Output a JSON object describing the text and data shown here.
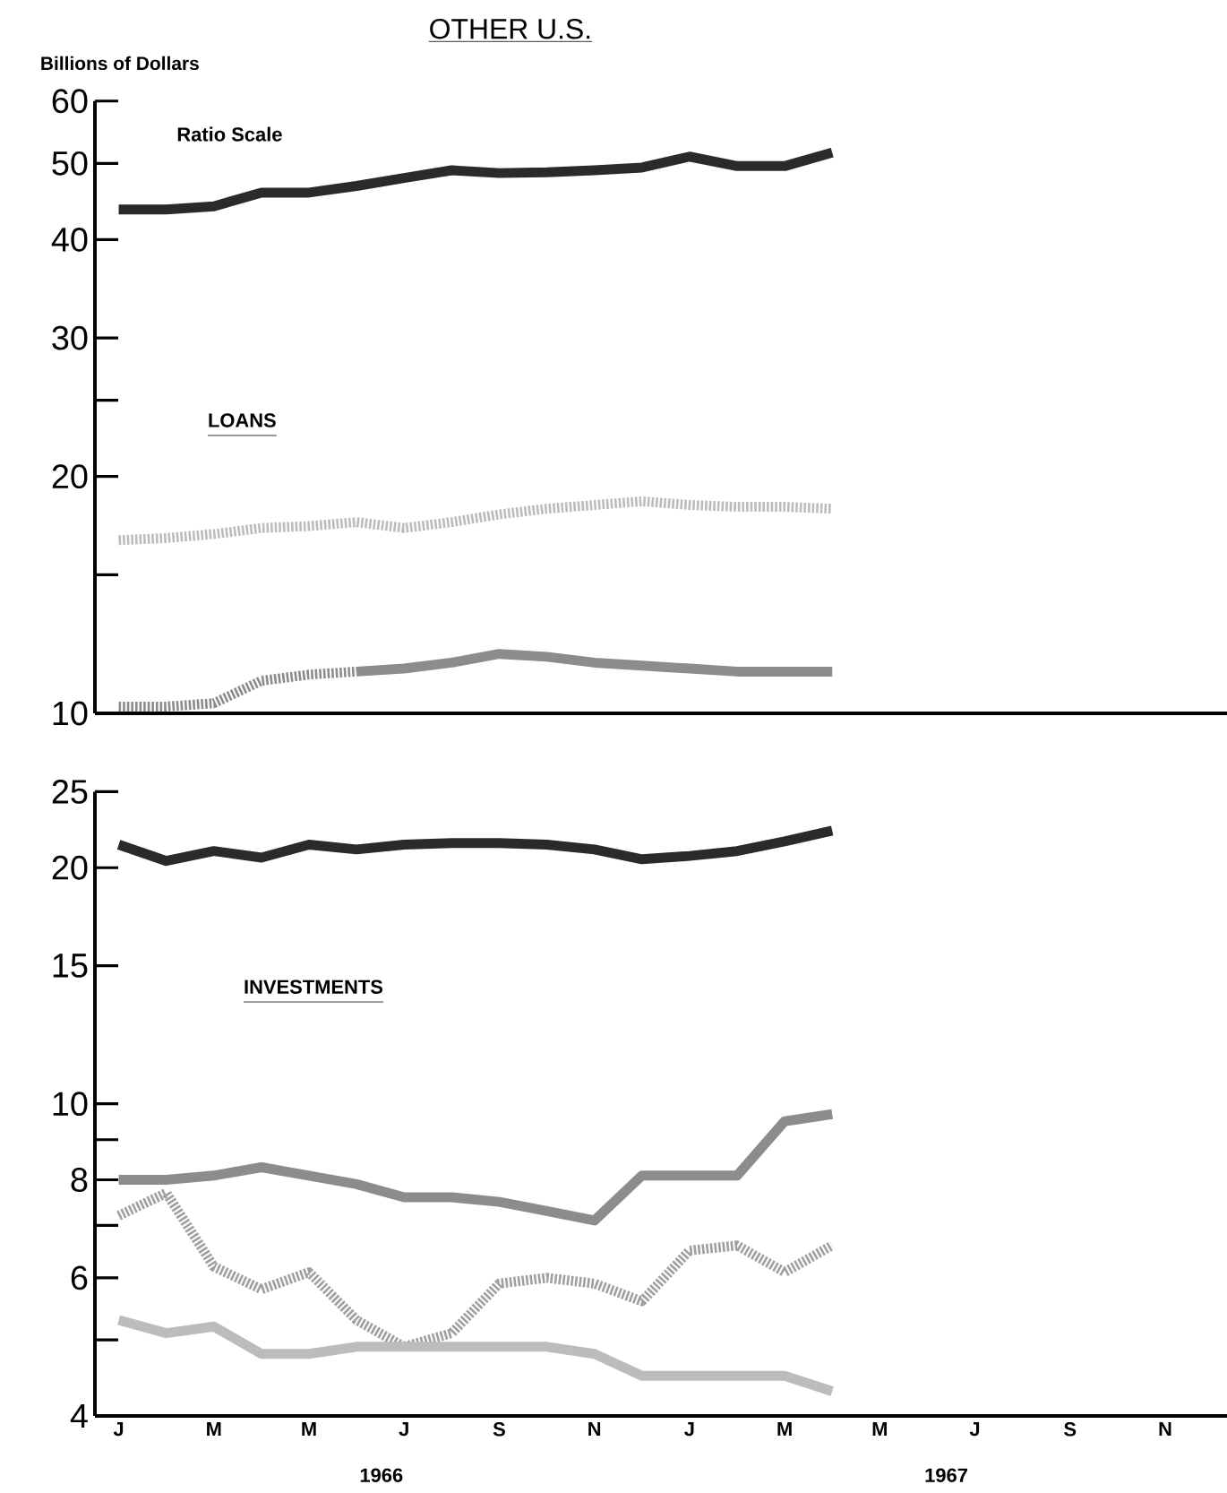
{
  "chart_data": [
    {
      "type": "line",
      "title": "OTHER U.S.",
      "ylabel": "Billions of Dollars",
      "annotations": [
        "Ratio Scale",
        "LOANS"
      ],
      "log": "y",
      "tick_labels": "y",
      "categories": [
        null,
        null,
        null,
        null,
        null,
        null,
        null,
        null,
        null,
        null,
        null,
        null,
        null,
        null,
        null,
        null,
        null,
        null,
        null,
        null,
        null,
        null,
        null,
        null
      ],
      "ylim": [
        10,
        60
      ],
      "yticks": [
        10,
        {
          "value": 15,
          "label": null
        },
        20,
        {
          "value": 25,
          "label": null
        },
        30,
        40,
        50,
        60
      ],
      "series": [
        {
          "color": "#2a2a2a",
          "line_style": "solid",
          "values": [
            43.7,
            43.7,
            44.1,
            45.9,
            45.9,
            46.8,
            47.9,
            49.0,
            48.6,
            48.7,
            49.0,
            49.4,
            51.0,
            49.6,
            49.6,
            51.6,
            null,
            null,
            null,
            null,
            null,
            null,
            null,
            null
          ]
        },
        {
          "color": "#bcbcbc",
          "line_style": "dotted",
          "values": [
            16.6,
            16.7,
            16.9,
            17.2,
            17.3,
            17.5,
            17.2,
            17.5,
            17.9,
            18.2,
            18.4,
            18.6,
            18.4,
            18.3,
            18.3,
            18.2,
            null,
            null,
            null,
            null,
            null,
            null,
            null,
            null
          ]
        },
        {
          "color": "#8c8c8c",
          "line_style": "dotted",
          "values": [
            10.2,
            10.2,
            10.3,
            11.0,
            11.2,
            11.3,
            null,
            null,
            null,
            null,
            null,
            null,
            null,
            null,
            null,
            null,
            null,
            null,
            null,
            null,
            null,
            null,
            null,
            null
          ]
        },
        {
          "color": "#8c8c8c",
          "line_style": "solid",
          "values": [
            null,
            null,
            null,
            null,
            null,
            11.3,
            11.4,
            11.6,
            11.9,
            11.8,
            11.6,
            11.5,
            11.4,
            11.3,
            11.3,
            11.3,
            null,
            null,
            null,
            null,
            null,
            null,
            null,
            null
          ]
        }
      ]
    },
    {
      "type": "line",
      "annotations": [
        "INVESTMENTS",
        "1966",
        "1967"
      ],
      "log": "y",
      "categories": [
        "J",
        null,
        "M",
        null,
        "M",
        null,
        "J",
        null,
        "S",
        null,
        "N",
        null,
        "J",
        null,
        "M",
        null,
        "M",
        null,
        "J",
        null,
        "S",
        null,
        "N",
        null
      ],
      "ylim": [
        4,
        25
      ],
      "yticks": [
        4,
        {
          "value": 5,
          "label": null
        },
        6,
        {
          "value": 7,
          "label": null
        },
        8,
        {
          "value": 9,
          "label": null
        },
        10,
        15,
        20,
        25
      ],
      "series": [
        {
          "color": "#2a2a2a",
          "line_style": "solid",
          "values": [
            21.4,
            20.4,
            21.0,
            20.6,
            21.4,
            21.1,
            21.4,
            21.5,
            21.5,
            21.4,
            21.1,
            20.5,
            20.7,
            21.0,
            21.6,
            22.3,
            null,
            null,
            null,
            null,
            null,
            null,
            null,
            null
          ]
        },
        {
          "color": "#8c8c8c",
          "line_style": "solid",
          "values": [
            8.0,
            8.0,
            8.1,
            8.3,
            8.1,
            7.9,
            7.6,
            7.6,
            7.5,
            7.3,
            7.1,
            8.1,
            8.1,
            8.1,
            9.5,
            9.7,
            null,
            null,
            null,
            null,
            null,
            null,
            null,
            null
          ]
        },
        {
          "color": "#a0a0a0",
          "line_style": "dotted",
          "values": [
            7.2,
            7.7,
            6.2,
            5.8,
            6.1,
            5.3,
            4.9,
            5.1,
            5.9,
            6.0,
            5.9,
            5.6,
            6.5,
            6.6,
            6.1,
            6.6,
            null,
            null,
            null,
            null,
            null,
            null,
            null,
            null
          ]
        },
        {
          "color": "#bcbcbc",
          "line_style": "solid",
          "values": [
            5.3,
            5.1,
            5.2,
            4.8,
            4.8,
            4.9,
            4.9,
            4.9,
            4.9,
            4.9,
            4.8,
            4.5,
            4.5,
            4.5,
            4.5,
            4.3,
            null,
            null,
            null,
            null,
            null,
            null,
            null,
            null
          ]
        }
      ]
    }
  ]
}
